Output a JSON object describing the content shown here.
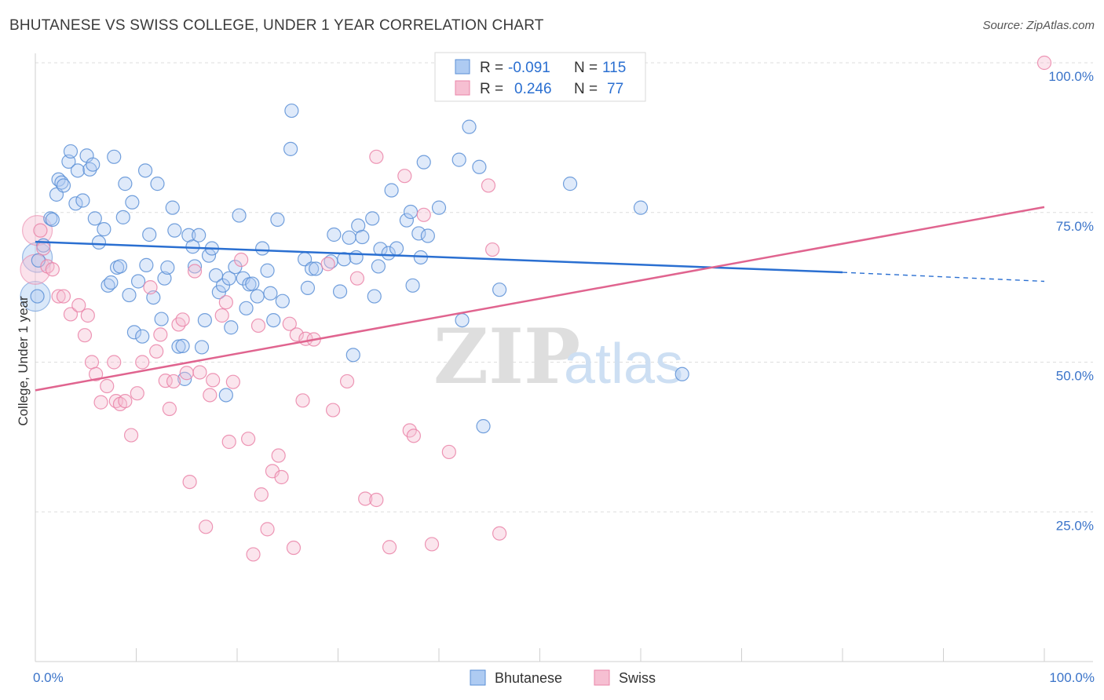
{
  "title": "BHUTANESE VS SWISS COLLEGE, UNDER 1 YEAR CORRELATION CHART",
  "source": "Source: ZipAtlas.com",
  "watermark": {
    "zip": "ZIP",
    "atlas": "atlas"
  },
  "legend_top": {
    "r_label": "R =",
    "n_label": "N =",
    "rows": [
      {
        "name": "Bhutanese",
        "r": "-0.091",
        "n": "115"
      },
      {
        "name": "Swiss",
        "r": "0.246",
        "n": "77"
      }
    ]
  },
  "legend_bottom": [
    "Bhutanese",
    "Swiss"
  ],
  "colors": {
    "blue": "#5b8fd6",
    "blue_fill": "#aecbf2",
    "blue_line": "#2a6fd1",
    "pink": "#ea84a8",
    "pink_fill": "#f6bfd2",
    "pink_line": "#e0648f",
    "axis_label": "#3b74c9",
    "grid": "#dddddd"
  },
  "chart_data": {
    "type": "scatter",
    "title": "BHUTANESE VS SWISS COLLEGE, UNDER 1 YEAR CORRELATION CHART",
    "xlabel": "",
    "ylabel": "College, Under 1 year",
    "xlim": [
      0,
      100
    ],
    "ylim": [
      0,
      100
    ],
    "x_tick_labels": [
      "0.0%",
      "100.0%"
    ],
    "y_ticks": [
      25,
      50,
      75,
      100
    ],
    "y_tick_labels": [
      "25.0%",
      "50.0%",
      "75.0%",
      "100.0%"
    ],
    "grid": true,
    "series": [
      {
        "name": "Bhutanese",
        "trend": {
          "x0": 0,
          "y0": 70.1,
          "x1": 80,
          "y1": 65.0,
          "dashed_to_x": 100,
          "dashed_to_y": 63.5
        },
        "points": [
          [
            0.2,
            61
          ],
          [
            0.3,
            67
          ],
          [
            0.8,
            69.5
          ],
          [
            1.5,
            74
          ],
          [
            1.7,
            73.8
          ],
          [
            2.1,
            78
          ],
          [
            2.3,
            80.5
          ],
          [
            2.6,
            80
          ],
          [
            2.8,
            79.5
          ],
          [
            3.3,
            83.5
          ],
          [
            3.5,
            85.2
          ],
          [
            4.0,
            76.5
          ],
          [
            4.2,
            82
          ],
          [
            4.7,
            77
          ],
          [
            5.1,
            84.5
          ],
          [
            5.4,
            82.2
          ],
          [
            5.7,
            83
          ],
          [
            5.9,
            74
          ],
          [
            6.3,
            70
          ],
          [
            6.8,
            72.2
          ],
          [
            7.2,
            62.8
          ],
          [
            7.5,
            63.3
          ],
          [
            7.8,
            84.3
          ],
          [
            8.1,
            65.8
          ],
          [
            8.4,
            66
          ],
          [
            8.7,
            74.2
          ],
          [
            8.9,
            79.8
          ],
          [
            9.3,
            61.2
          ],
          [
            9.6,
            76.7
          ],
          [
            9.8,
            55
          ],
          [
            10.2,
            63.5
          ],
          [
            10.6,
            54.3
          ],
          [
            10.9,
            82
          ],
          [
            11.0,
            66.2
          ],
          [
            11.3,
            71.3
          ],
          [
            11.7,
            60.8
          ],
          [
            12.1,
            79.8
          ],
          [
            12.5,
            57.2
          ],
          [
            12.8,
            64
          ],
          [
            13.1,
            65.8
          ],
          [
            13.6,
            75.8
          ],
          [
            13.8,
            72
          ],
          [
            14.2,
            52.6
          ],
          [
            14.6,
            52.7
          ],
          [
            14.8,
            47.2
          ],
          [
            15.2,
            71.2
          ],
          [
            15.6,
            69.3
          ],
          [
            15.8,
            66
          ],
          [
            16.2,
            71.2
          ],
          [
            16.5,
            52.5
          ],
          [
            16.8,
            57
          ],
          [
            17.2,
            67.8
          ],
          [
            17.5,
            69
          ],
          [
            17.9,
            64.5
          ],
          [
            18.2,
            61.7
          ],
          [
            18.6,
            62.8
          ],
          [
            18.9,
            44.5
          ],
          [
            19.2,
            64
          ],
          [
            19.4,
            55.8
          ],
          [
            19.8,
            65.9
          ],
          [
            20.2,
            74.5
          ],
          [
            20.6,
            64
          ],
          [
            20.9,
            59
          ],
          [
            21.2,
            63
          ],
          [
            21.5,
            63.1
          ],
          [
            22.0,
            61
          ],
          [
            22.5,
            69
          ],
          [
            23.0,
            65.3
          ],
          [
            23.3,
            61.5
          ],
          [
            23.6,
            57
          ],
          [
            24.0,
            73.8
          ],
          [
            24.5,
            60.2
          ],
          [
            25.3,
            85.6
          ],
          [
            25.4,
            92
          ],
          [
            26.7,
            67.2
          ],
          [
            27.0,
            62.4
          ],
          [
            27.4,
            65.6
          ],
          [
            27.8,
            65.6
          ],
          [
            29.3,
            66.8
          ],
          [
            29.6,
            71.3
          ],
          [
            30.2,
            61.8
          ],
          [
            30.6,
            67.2
          ],
          [
            31.1,
            70.8
          ],
          [
            31.5,
            51.2
          ],
          [
            31.8,
            67.5
          ],
          [
            32.0,
            72.8
          ],
          [
            32.4,
            70.9
          ],
          [
            33.4,
            74
          ],
          [
            33.6,
            61
          ],
          [
            34.0,
            66
          ],
          [
            34.2,
            68.9
          ],
          [
            35.0,
            68.2
          ],
          [
            35.3,
            78.7
          ],
          [
            35.8,
            69
          ],
          [
            36.8,
            73.7
          ],
          [
            37.2,
            75.1
          ],
          [
            37.4,
            62.8
          ],
          [
            38.0,
            71.5
          ],
          [
            38.2,
            67.5
          ],
          [
            38.5,
            83.4
          ],
          [
            38.9,
            71.1
          ],
          [
            40.0,
            75.8
          ],
          [
            42.0,
            83.8
          ],
          [
            42.3,
            57
          ],
          [
            43.0,
            89.3
          ],
          [
            44.0,
            82.6
          ],
          [
            44.4,
            39.3
          ],
          [
            46.0,
            62.1
          ],
          [
            53.0,
            79.8
          ],
          [
            60.0,
            75.8
          ],
          [
            64.1,
            48
          ]
        ],
        "large_points": [
          [
            0.0,
            61.0
          ],
          [
            0.2,
            67.5
          ]
        ]
      },
      {
        "name": "Swiss",
        "trend": {
          "x0": 0,
          "y0": 45.3,
          "x1": 100,
          "y1": 75.9
        },
        "points": [
          [
            0.5,
            72
          ],
          [
            0.8,
            69
          ],
          [
            1.2,
            66
          ],
          [
            1.7,
            65.5
          ],
          [
            2.3,
            61
          ],
          [
            2.8,
            61
          ],
          [
            3.5,
            58
          ],
          [
            4.3,
            59.5
          ],
          [
            4.9,
            54.5
          ],
          [
            5.2,
            57.8
          ],
          [
            5.6,
            50
          ],
          [
            6.0,
            48
          ],
          [
            6.5,
            43.3
          ],
          [
            7.1,
            46
          ],
          [
            7.8,
            50
          ],
          [
            8.0,
            43.5
          ],
          [
            8.4,
            43
          ],
          [
            8.9,
            43.5
          ],
          [
            9.5,
            37.8
          ],
          [
            10.1,
            44.8
          ],
          [
            10.6,
            50
          ],
          [
            11.4,
            62.5
          ],
          [
            12.0,
            51.8
          ],
          [
            12.4,
            54.6
          ],
          [
            12.9,
            46.9
          ],
          [
            13.3,
            42.2
          ],
          [
            13.7,
            46.8
          ],
          [
            14.2,
            56.3
          ],
          [
            14.6,
            57.1
          ],
          [
            15.0,
            48.2
          ],
          [
            15.3,
            30
          ],
          [
            15.8,
            65.2
          ],
          [
            16.3,
            48.3
          ],
          [
            16.9,
            22.5
          ],
          [
            17.3,
            44.5
          ],
          [
            17.6,
            47
          ],
          [
            18.5,
            57.8
          ],
          [
            18.9,
            60
          ],
          [
            19.2,
            36.7
          ],
          [
            19.6,
            46.7
          ],
          [
            20.4,
            67.1
          ],
          [
            21.1,
            37.2
          ],
          [
            21.6,
            17.9
          ],
          [
            22.1,
            56.1
          ],
          [
            22.4,
            27.9
          ],
          [
            23.0,
            22.1
          ],
          [
            23.5,
            31.8
          ],
          [
            24.1,
            34.4
          ],
          [
            24.4,
            30.8
          ],
          [
            25.2,
            56.4
          ],
          [
            25.6,
            19
          ],
          [
            25.9,
            54.6
          ],
          [
            26.5,
            43.6
          ],
          [
            26.8,
            53.9
          ],
          [
            27.6,
            53.8
          ],
          [
            29.0,
            66.4
          ],
          [
            29.5,
            42
          ],
          [
            30.9,
            46.8
          ],
          [
            31.9,
            64
          ],
          [
            32.7,
            27.2
          ],
          [
            33.8,
            27.0
          ],
          [
            33.8,
            84.3
          ],
          [
            35.1,
            19.1
          ],
          [
            36.6,
            81.1
          ],
          [
            37.1,
            38.6
          ],
          [
            37.5,
            37.7
          ],
          [
            38.5,
            74.6
          ],
          [
            39.3,
            19.6
          ],
          [
            41.0,
            35
          ],
          [
            42.2,
            100
          ],
          [
            44.9,
            79.5
          ],
          [
            45.3,
            68.8
          ],
          [
            46.0,
            21.4
          ],
          [
            100.0,
            100
          ]
        ],
        "large_points": [
          [
            0.0,
            65.5
          ],
          [
            0.2,
            72.0
          ]
        ]
      }
    ]
  }
}
